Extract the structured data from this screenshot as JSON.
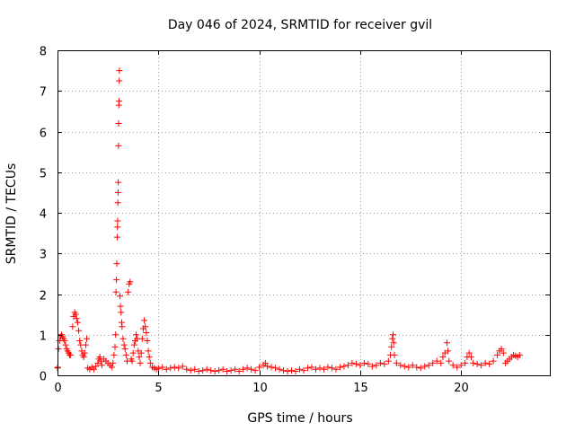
{
  "chart_data": {
    "type": "scatter",
    "title": "Day 046 of 2024, SRMTID for receiver gvil",
    "xlabel": "GPS time / hours",
    "ylabel": "SRMTID / TECUs",
    "xlim": [
      0,
      24.4
    ],
    "ylim": [
      0,
      8
    ],
    "xticks": [
      0,
      5,
      10,
      15,
      20
    ],
    "yticks": [
      0,
      1,
      2,
      3,
      4,
      5,
      6,
      7,
      8
    ],
    "grid": true,
    "marker": "plus",
    "color": "#ff0000",
    "series": [
      {
        "name": "SRMTID",
        "points": [
          [
            0.0,
            0.18
          ],
          [
            0.02,
            0.2
          ],
          [
            0.05,
            0.65
          ],
          [
            0.1,
            0.85
          ],
          [
            0.15,
            0.95
          ],
          [
            0.2,
            1.0
          ],
          [
            0.25,
            0.95
          ],
          [
            0.3,
            0.9
          ],
          [
            0.35,
            0.85
          ],
          [
            0.4,
            0.75
          ],
          [
            0.45,
            0.65
          ],
          [
            0.5,
            0.6
          ],
          [
            0.55,
            0.55
          ],
          [
            0.6,
            0.5
          ],
          [
            0.65,
            0.5
          ],
          [
            0.75,
            1.2
          ],
          [
            0.8,
            1.45
          ],
          [
            0.85,
            1.55
          ],
          [
            0.9,
            1.5
          ],
          [
            0.95,
            1.4
          ],
          [
            1.0,
            1.3
          ],
          [
            1.05,
            1.1
          ],
          [
            1.1,
            0.85
          ],
          [
            1.15,
            0.75
          ],
          [
            1.2,
            0.6
          ],
          [
            1.25,
            0.5
          ],
          [
            1.3,
            0.45
          ],
          [
            1.35,
            0.55
          ],
          [
            1.4,
            0.75
          ],
          [
            1.45,
            0.9
          ],
          [
            1.5,
            0.18
          ],
          [
            1.6,
            0.15
          ],
          [
            1.7,
            0.2
          ],
          [
            1.8,
            0.15
          ],
          [
            1.9,
            0.22
          ],
          [
            2.0,
            0.3
          ],
          [
            2.05,
            0.4
          ],
          [
            2.1,
            0.45
          ],
          [
            2.15,
            0.35
          ],
          [
            2.2,
            0.25
          ],
          [
            2.3,
            0.4
          ],
          [
            2.4,
            0.35
          ],
          [
            2.5,
            0.3
          ],
          [
            2.6,
            0.25
          ],
          [
            2.7,
            0.2
          ],
          [
            2.75,
            0.3
          ],
          [
            2.8,
            0.5
          ],
          [
            2.85,
            0.7
          ],
          [
            2.88,
            1.0
          ],
          [
            2.9,
            2.05
          ],
          [
            2.92,
            2.35
          ],
          [
            2.94,
            2.75
          ],
          [
            2.96,
            3.4
          ],
          [
            2.97,
            3.65
          ],
          [
            2.98,
            3.8
          ],
          [
            2.99,
            4.25
          ],
          [
            3.0,
            4.5
          ],
          [
            3.01,
            4.75
          ],
          [
            3.02,
            5.65
          ],
          [
            3.03,
            6.2
          ],
          [
            3.04,
            6.65
          ],
          [
            3.05,
            6.75
          ],
          [
            3.06,
            7.25
          ],
          [
            3.07,
            7.5
          ],
          [
            3.1,
            1.95
          ],
          [
            3.12,
            1.7
          ],
          [
            3.15,
            1.55
          ],
          [
            3.18,
            1.3
          ],
          [
            3.2,
            1.2
          ],
          [
            3.25,
            0.9
          ],
          [
            3.3,
            0.75
          ],
          [
            3.35,
            0.65
          ],
          [
            3.4,
            0.5
          ],
          [
            3.45,
            0.35
          ],
          [
            3.5,
            2.05
          ],
          [
            3.55,
            2.25
          ],
          [
            3.6,
            2.3
          ],
          [
            3.65,
            0.4
          ],
          [
            3.7,
            0.35
          ],
          [
            3.75,
            0.55
          ],
          [
            3.8,
            0.75
          ],
          [
            3.85,
            0.85
          ],
          [
            3.9,
            1.0
          ],
          [
            3.95,
            0.9
          ],
          [
            4.0,
            0.6
          ],
          [
            4.05,
            0.45
          ],
          [
            4.1,
            0.3
          ],
          [
            4.15,
            0.55
          ],
          [
            4.2,
            0.9
          ],
          [
            4.25,
            1.15
          ],
          [
            4.3,
            1.35
          ],
          [
            4.35,
            1.2
          ],
          [
            4.4,
            1.05
          ],
          [
            4.45,
            0.85
          ],
          [
            4.5,
            0.6
          ],
          [
            4.55,
            0.45
          ],
          [
            4.6,
            0.3
          ],
          [
            4.7,
            0.2
          ],
          [
            4.8,
            0.18
          ],
          [
            4.9,
            0.15
          ],
          [
            5.0,
            0.17
          ],
          [
            5.2,
            0.2
          ],
          [
            5.4,
            0.15
          ],
          [
            5.6,
            0.18
          ],
          [
            5.8,
            0.2
          ],
          [
            6.0,
            0.18
          ],
          [
            6.2,
            0.22
          ],
          [
            6.4,
            0.15
          ],
          [
            6.6,
            0.12
          ],
          [
            6.8,
            0.15
          ],
          [
            7.0,
            0.1
          ],
          [
            7.2,
            0.12
          ],
          [
            7.4,
            0.15
          ],
          [
            7.6,
            0.12
          ],
          [
            7.8,
            0.1
          ],
          [
            8.0,
            0.12
          ],
          [
            8.2,
            0.15
          ],
          [
            8.4,
            0.1
          ],
          [
            8.6,
            0.12
          ],
          [
            8.8,
            0.15
          ],
          [
            9.0,
            0.1
          ],
          [
            9.2,
            0.15
          ],
          [
            9.4,
            0.18
          ],
          [
            9.6,
            0.15
          ],
          [
            9.8,
            0.12
          ],
          [
            10.0,
            0.2
          ],
          [
            10.2,
            0.25
          ],
          [
            10.3,
            0.3
          ],
          [
            10.4,
            0.22
          ],
          [
            10.6,
            0.2
          ],
          [
            10.8,
            0.18
          ],
          [
            11.0,
            0.15
          ],
          [
            11.2,
            0.12
          ],
          [
            11.4,
            0.1
          ],
          [
            11.6,
            0.12
          ],
          [
            11.8,
            0.1
          ],
          [
            12.0,
            0.15
          ],
          [
            12.2,
            0.12
          ],
          [
            12.4,
            0.18
          ],
          [
            12.6,
            0.2
          ],
          [
            12.8,
            0.15
          ],
          [
            13.0,
            0.18
          ],
          [
            13.2,
            0.15
          ],
          [
            13.4,
            0.2
          ],
          [
            13.6,
            0.18
          ],
          [
            13.8,
            0.15
          ],
          [
            14.0,
            0.2
          ],
          [
            14.2,
            0.22
          ],
          [
            14.4,
            0.25
          ],
          [
            14.6,
            0.3
          ],
          [
            14.8,
            0.28
          ],
          [
            15.0,
            0.25
          ],
          [
            15.2,
            0.3
          ],
          [
            15.4,
            0.28
          ],
          [
            15.6,
            0.22
          ],
          [
            15.8,
            0.25
          ],
          [
            16.0,
            0.3
          ],
          [
            16.2,
            0.28
          ],
          [
            16.4,
            0.35
          ],
          [
            16.5,
            0.5
          ],
          [
            16.55,
            0.7
          ],
          [
            16.6,
            0.9
          ],
          [
            16.63,
            1.0
          ],
          [
            16.66,
            0.8
          ],
          [
            16.7,
            0.5
          ],
          [
            16.8,
            0.3
          ],
          [
            17.0,
            0.25
          ],
          [
            17.2,
            0.22
          ],
          [
            17.4,
            0.2
          ],
          [
            17.6,
            0.25
          ],
          [
            17.8,
            0.2
          ],
          [
            18.0,
            0.18
          ],
          [
            18.2,
            0.22
          ],
          [
            18.4,
            0.25
          ],
          [
            18.6,
            0.3
          ],
          [
            18.8,
            0.35
          ],
          [
            19.0,
            0.3
          ],
          [
            19.1,
            0.45
          ],
          [
            19.2,
            0.55
          ],
          [
            19.3,
            0.8
          ],
          [
            19.35,
            0.6
          ],
          [
            19.4,
            0.35
          ],
          [
            19.6,
            0.25
          ],
          [
            19.8,
            0.2
          ],
          [
            20.0,
            0.25
          ],
          [
            20.2,
            0.3
          ],
          [
            20.3,
            0.45
          ],
          [
            20.4,
            0.55
          ],
          [
            20.5,
            0.45
          ],
          [
            20.6,
            0.3
          ],
          [
            20.8,
            0.28
          ],
          [
            21.0,
            0.25
          ],
          [
            21.2,
            0.3
          ],
          [
            21.4,
            0.28
          ],
          [
            21.6,
            0.35
          ],
          [
            21.8,
            0.5
          ],
          [
            21.9,
            0.6
          ],
          [
            22.0,
            0.65
          ],
          [
            22.1,
            0.55
          ],
          [
            22.2,
            0.3
          ],
          [
            22.3,
            0.35
          ],
          [
            22.4,
            0.4
          ],
          [
            22.5,
            0.45
          ],
          [
            22.6,
            0.5
          ],
          [
            22.7,
            0.48
          ],
          [
            22.8,
            0.45
          ],
          [
            22.9,
            0.5
          ]
        ]
      }
    ]
  }
}
